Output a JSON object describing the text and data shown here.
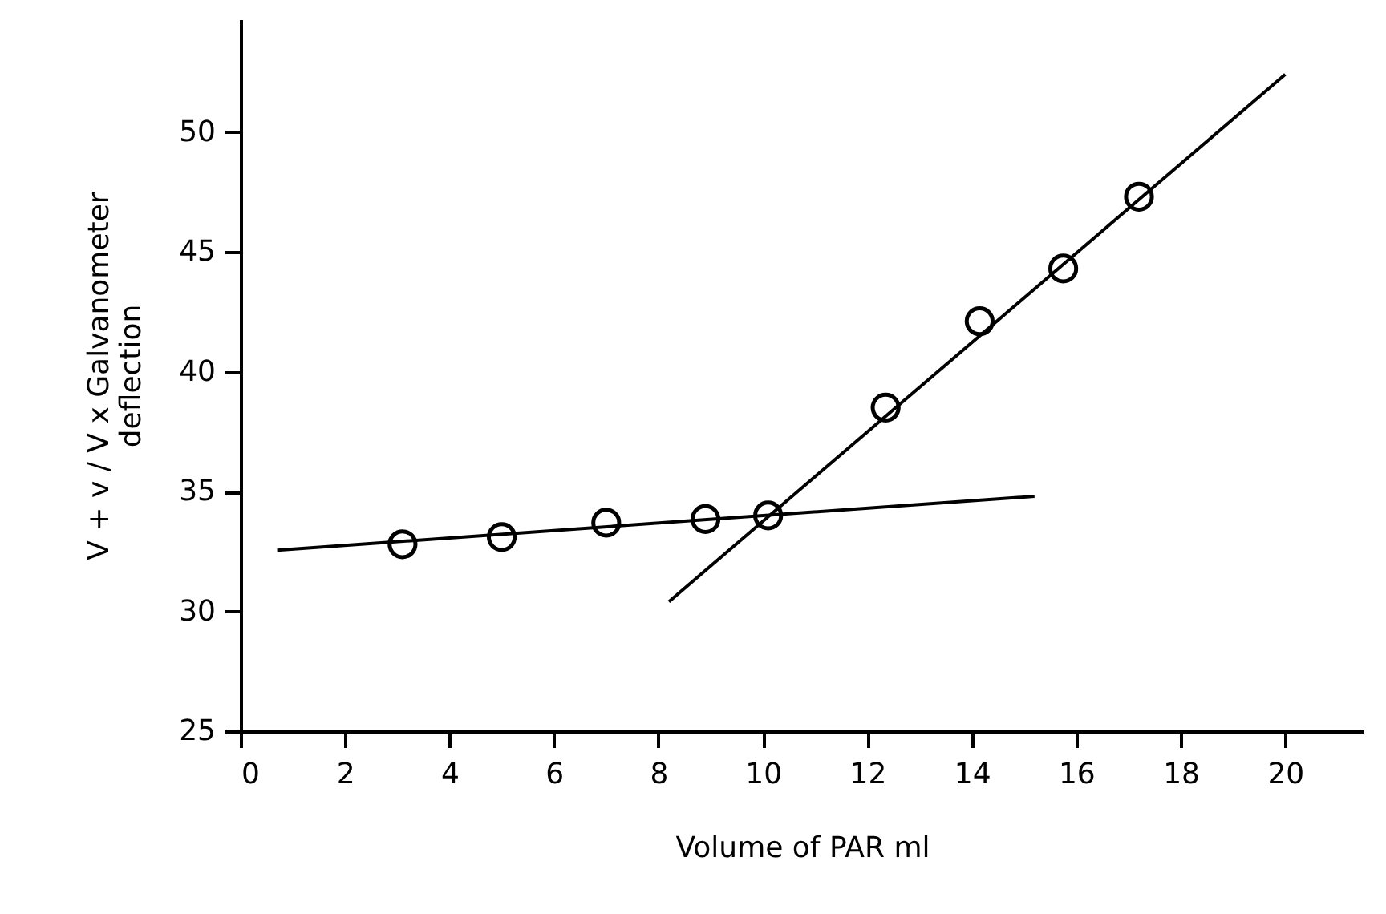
{
  "chart_data": {
    "type": "scatter",
    "xlabel": "Volume  of  PAR  ml",
    "ylabel": "V + v / V x  Galvanometer\ndeflection",
    "xlim": [
      0,
      21.5
    ],
    "ylim": [
      25,
      54.7
    ],
    "xticks": [
      0,
      2,
      4,
      6,
      8,
      10,
      12,
      14,
      16,
      18,
      20
    ],
    "yticks": [
      25,
      30,
      35,
      40,
      45,
      50
    ],
    "series": [
      {
        "color": "#000000",
        "marker": "circle",
        "x": [
          3.1,
          5.0,
          7.0,
          8.9,
          10.1,
          12.35,
          14.15,
          15.75,
          17.2
        ],
        "values": [
          32.8,
          33.1,
          33.7,
          33.85,
          34.0,
          38.5,
          42.1,
          44.3,
          47.3
        ]
      },
      {
        "type": "line",
        "color": "#000000",
        "line_style": "solid",
        "x": [
          0.7,
          15.2
        ],
        "values": [
          32.55,
          34.8
        ]
      },
      {
        "type": "line",
        "color": "#000000",
        "line_style": "solid",
        "x": [
          8.2,
          20.0
        ],
        "values": [
          30.4,
          52.4
        ]
      }
    ]
  }
}
